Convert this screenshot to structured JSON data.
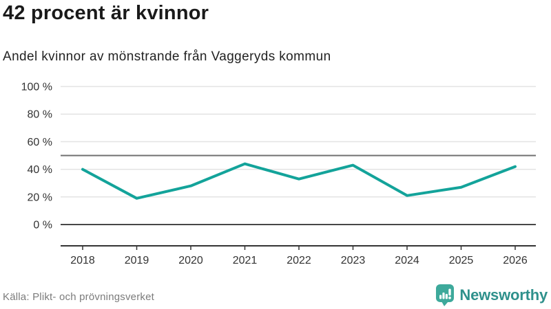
{
  "chart_data": {
    "type": "line",
    "title": "42 procent är kvinnor",
    "subtitle": "Andel kvinnor av mönstrande från Vaggeryds kommun",
    "categories": [
      "2018",
      "2019",
      "2020",
      "2021",
      "2022",
      "2023",
      "2024",
      "2025",
      "2026"
    ],
    "values": [
      40,
      19,
      28,
      44,
      33,
      43,
      21,
      27,
      42
    ],
    "unit": "%",
    "ylim": [
      0,
      100
    ],
    "yticks": [
      0,
      20,
      40,
      60,
      80,
      100
    ],
    "ytick_suffix": " %",
    "reference_line_value": 50,
    "grid": true,
    "legend": false,
    "colors": {
      "line": "#13a39a",
      "grid": "#e3e3e3",
      "reference_line": "#6f6f6f",
      "zero_line": "#474747",
      "axis": "#333333",
      "tick_text": "#333333"
    }
  },
  "footer": {
    "source": "Källa: Plikt- och prövningsverket",
    "brand": "Newsworthy",
    "brand_text_color": "#2f918c",
    "logo_icon_color": "#3da99b"
  }
}
